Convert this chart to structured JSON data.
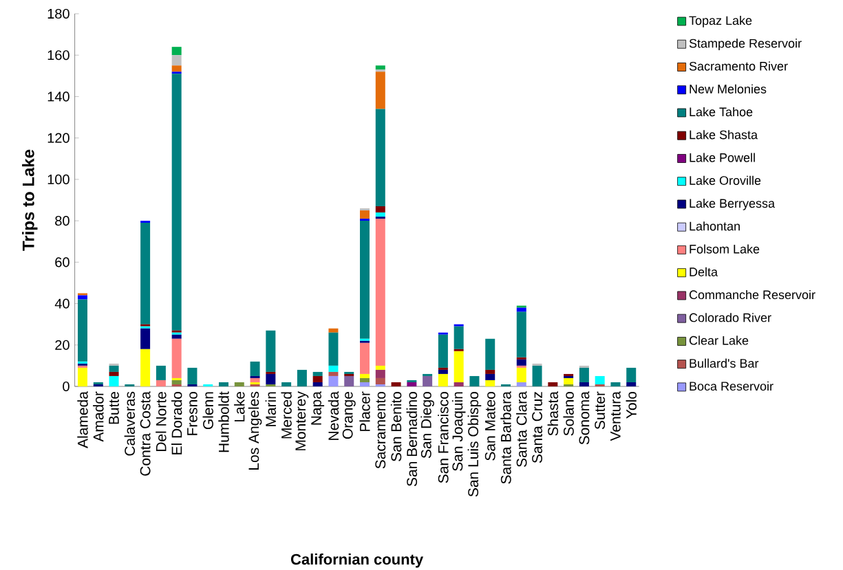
{
  "chart_data": {
    "type": "bar",
    "stacked": true,
    "xlabel": "Californian county",
    "ylabel": "Trips to Lake",
    "categories": [
      "Alameda",
      "Amador",
      "Butte",
      "Calaveras",
      "Contra Costa",
      "Del Norte",
      "El Dorado",
      "Fresno",
      "Glenn",
      "Humboldt",
      "Lake",
      "Los Angeles",
      "Marin",
      "Merced",
      "Monterey",
      "Napa",
      "Nevada",
      "Orange",
      "Placer",
      "Sacramento",
      "San Benito",
      "San Bernadino",
      "San Diego",
      "San Francisco",
      "San Joaquin",
      "San Luis Obispo",
      "San Mateo",
      "Santa Barbara",
      "Santa Clara",
      "Santa Cruz",
      "Shasta",
      "Solano",
      "Sonoma",
      "Sutter",
      "Ventura",
      "Yolo"
    ],
    "ylim": [
      0,
      180
    ],
    "yticks": [
      0,
      20,
      40,
      60,
      80,
      100,
      120,
      140,
      160,
      180
    ],
    "grid": false,
    "legend": "right",
    "series": [
      {
        "name": "Boca Reservoir",
        "color": "#9999ff",
        "values": [
          0,
          0,
          0,
          0,
          0,
          0,
          0,
          0,
          0,
          0,
          0,
          0,
          0,
          0,
          0,
          0,
          5,
          0,
          2,
          1,
          0,
          0,
          0,
          0,
          0,
          0,
          0,
          0,
          2,
          0,
          0,
          0,
          0,
          0,
          0,
          0
        ]
      },
      {
        "name": "Bullard's Bar",
        "color": "#b5534f",
        "values": [
          0,
          0,
          0,
          0,
          0,
          0,
          1,
          0,
          0,
          0,
          0,
          1,
          0,
          0,
          0,
          0,
          2,
          0,
          0,
          3,
          0,
          0,
          0,
          0,
          0,
          0,
          0,
          0,
          0,
          0,
          0,
          0,
          0,
          1,
          0,
          0
        ]
      },
      {
        "name": "Clear Lake",
        "color": "#77933c",
        "values": [
          0,
          0,
          0,
          0,
          0,
          0,
          2,
          0,
          0,
          0,
          2,
          0,
          1,
          0,
          0,
          0,
          0,
          0,
          2,
          0,
          0,
          0,
          0,
          0,
          0,
          0,
          0,
          0,
          0,
          0,
          0,
          1,
          0,
          0,
          0,
          0
        ]
      },
      {
        "name": "Colorado River",
        "color": "#7f5f9f",
        "values": [
          0,
          0,
          0,
          0,
          0,
          0,
          0,
          0,
          0,
          0,
          0,
          0,
          0,
          0,
          0,
          0,
          0,
          5,
          0,
          0,
          0,
          0,
          5,
          0,
          0,
          0,
          0,
          0,
          0,
          0,
          0,
          0,
          0,
          0,
          0,
          0
        ]
      },
      {
        "name": "Commanche Reservoir",
        "color": "#993366",
        "values": [
          0,
          0,
          0,
          0,
          0,
          0,
          0,
          0,
          0,
          0,
          0,
          0,
          0,
          0,
          0,
          0,
          0,
          0,
          0,
          4,
          0,
          0,
          0,
          0,
          2,
          0,
          0,
          0,
          0,
          0,
          0,
          0,
          0,
          0,
          0,
          0
        ]
      },
      {
        "name": "Delta",
        "color": "#ffff00",
        "values": [
          9,
          0,
          0,
          0,
          18,
          0,
          1,
          0,
          0,
          0,
          0,
          1,
          0,
          0,
          0,
          0,
          0,
          0,
          2,
          2,
          0,
          0,
          0,
          6,
          15,
          0,
          3,
          0,
          7,
          0,
          0,
          3,
          0,
          0,
          0,
          0
        ]
      },
      {
        "name": "Folsom Lake",
        "color": "#ff8080",
        "values": [
          1,
          0,
          0,
          0,
          0,
          3,
          19,
          0,
          0,
          0,
          0,
          2,
          0,
          0,
          0,
          0,
          0,
          0,
          15,
          71,
          0,
          0,
          0,
          0,
          0,
          0,
          0,
          0,
          1,
          0,
          0,
          0,
          0,
          0,
          0,
          0
        ]
      },
      {
        "name": "Lahontan",
        "color": "#ccccff",
        "values": [
          0,
          0,
          0,
          0,
          0,
          0,
          0,
          0,
          0,
          0,
          0,
          0,
          0,
          0,
          0,
          0,
          0,
          0,
          0,
          0,
          0,
          0,
          0,
          0,
          0,
          0,
          0,
          0,
          0,
          0,
          0,
          0,
          0,
          0,
          0,
          0
        ]
      },
      {
        "name": "Lake Berryessa",
        "color": "#000080",
        "values": [
          1,
          1,
          0,
          0,
          10,
          0,
          2,
          1,
          0,
          0,
          0,
          1,
          5,
          0,
          0,
          2,
          0,
          0,
          1,
          1,
          0,
          0,
          0,
          2,
          0,
          0,
          3,
          0,
          3,
          0,
          0,
          1,
          2,
          0,
          0,
          2
        ]
      },
      {
        "name": "Lake Oroville",
        "color": "#00ffff",
        "values": [
          1,
          0,
          5,
          0,
          1,
          0,
          1,
          0,
          1,
          0,
          0,
          0,
          0,
          0,
          0,
          0,
          3,
          0,
          1,
          2,
          0,
          0,
          0,
          0,
          0,
          0,
          0,
          0,
          0,
          0,
          0,
          0,
          0,
          4,
          0,
          0
        ]
      },
      {
        "name": "Lake Powell",
        "color": "#800080",
        "values": [
          0,
          0,
          0,
          0,
          0,
          0,
          0,
          0,
          0,
          0,
          0,
          0,
          0,
          0,
          0,
          0,
          0,
          0,
          0,
          0,
          0,
          2,
          0,
          0,
          0,
          0,
          0,
          0,
          0,
          0,
          0,
          0,
          0,
          0,
          0,
          0
        ]
      },
      {
        "name": "Lake Shasta",
        "color": "#800000",
        "values": [
          0,
          0,
          2,
          0,
          1,
          0,
          1,
          0,
          0,
          0,
          0,
          0,
          1,
          0,
          0,
          3,
          0,
          1,
          0,
          3,
          2,
          0,
          0,
          1,
          1,
          0,
          2,
          0,
          1,
          0,
          2,
          1,
          0,
          0,
          0,
          0
        ]
      },
      {
        "name": "Lake Tahoe",
        "color": "#008080",
        "values": [
          30,
          1,
          3,
          1,
          49,
          7,
          124,
          8,
          0,
          2,
          0,
          7,
          20,
          2,
          8,
          2,
          16,
          1,
          57,
          47,
          0,
          1,
          1,
          16,
          11,
          5,
          15,
          1,
          22,
          10,
          0,
          0,
          7,
          0,
          2,
          7
        ]
      },
      {
        "name": "New Melonies",
        "color": "#0000ff",
        "values": [
          2,
          0,
          0,
          0,
          1,
          0,
          1,
          0,
          0,
          0,
          0,
          0,
          0,
          0,
          0,
          0,
          0,
          0,
          1,
          0,
          0,
          0,
          0,
          1,
          1,
          0,
          0,
          0,
          2,
          0,
          0,
          0,
          0,
          0,
          0,
          0
        ]
      },
      {
        "name": "Sacramento River",
        "color": "#e46c0a",
        "values": [
          1,
          0,
          0,
          0,
          0,
          0,
          3,
          0,
          0,
          0,
          0,
          0,
          0,
          0,
          0,
          0,
          2,
          0,
          4,
          18,
          0,
          0,
          0,
          0,
          0,
          0,
          0,
          0,
          0,
          0,
          0,
          0,
          0,
          0,
          0,
          0
        ]
      },
      {
        "name": "Stampede Reservoir",
        "color": "#c0c0c0",
        "values": [
          0,
          0,
          1,
          0,
          0,
          0,
          5,
          0,
          0,
          0,
          0,
          0,
          0,
          0,
          0,
          0,
          0,
          0,
          1,
          1,
          0,
          0,
          0,
          0,
          0,
          0,
          0,
          0,
          0,
          1,
          0,
          0,
          1,
          0,
          0,
          0
        ]
      },
      {
        "name": "Topaz Lake",
        "color": "#00b050",
        "values": [
          0,
          0,
          0,
          0,
          0,
          0,
          4,
          0,
          0,
          0,
          0,
          0,
          0,
          0,
          0,
          0,
          0,
          0,
          0,
          2,
          0,
          0,
          0,
          0,
          0,
          0,
          0,
          0,
          1,
          0,
          0,
          0,
          0,
          0,
          0,
          0
        ]
      }
    ]
  }
}
